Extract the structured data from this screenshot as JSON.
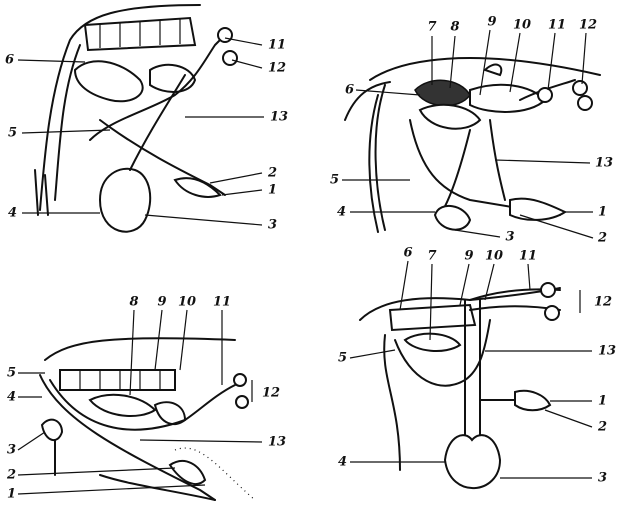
{
  "panels": [
    {
      "labels": [
        "11",
        "12",
        "13",
        "2",
        "1",
        "3",
        "4",
        "5",
        "6"
      ]
    },
    {
      "labels": [
        "7",
        "8",
        "9",
        "10",
        "11",
        "12",
        "6",
        "13",
        "5",
        "4",
        "1",
        "2",
        "3"
      ]
    },
    {
      "labels": [
        "8",
        "9",
        "10",
        "11",
        "12",
        "5",
        "4",
        "3",
        "13",
        "2",
        "1"
      ]
    },
    {
      "labels": [
        "6",
        "7",
        "9",
        "10",
        "11",
        "12",
        "5",
        "13",
        "1",
        "2",
        "4",
        "3"
      ]
    }
  ]
}
